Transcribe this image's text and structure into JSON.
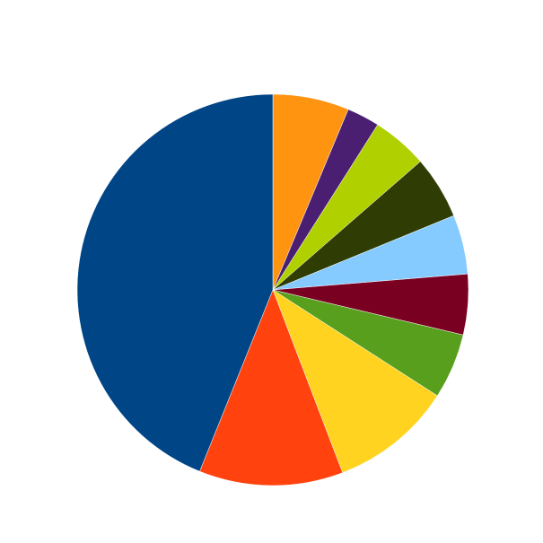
{
  "chart_data": {
    "type": "pie",
    "values": [
      6.3,
      2.7,
      4.6,
      5.2,
      4.9,
      5.0,
      5.4,
      10.1,
      11.9,
      43.9
    ],
    "colors": [
      "#ff9410",
      "#4a1f72",
      "#b0d000",
      "#2f3d05",
      "#85cbff",
      "#7a0022",
      "#579f1c",
      "#ffd31f",
      "#ff420e",
      "#004586"
    ]
  }
}
